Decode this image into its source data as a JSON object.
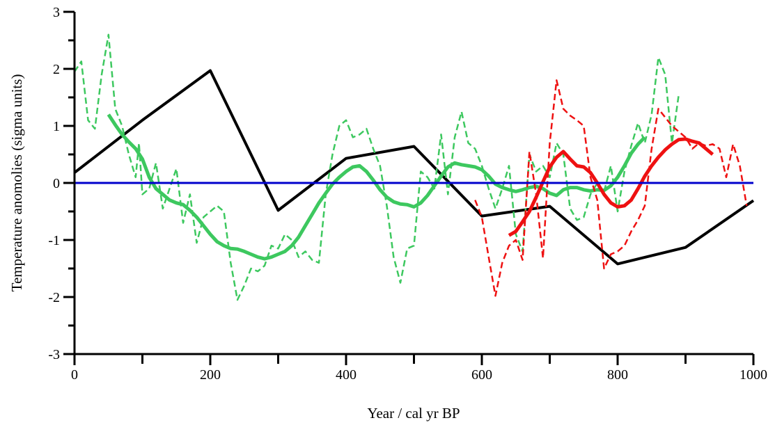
{
  "chart_data": {
    "type": "line",
    "title": "",
    "xlabel": "Year / cal yr BP",
    "ylabel": "Temperature anomolies (sigma units)",
    "xlim": [
      0,
      1000
    ],
    "ylim": [
      -3,
      3
    ],
    "x_ticks": [
      0,
      200,
      400,
      600,
      800,
      1000
    ],
    "x_minor_ticks": [
      100,
      300,
      500,
      700,
      900
    ],
    "y_ticks": [
      -3,
      -2,
      -1,
      0,
      1,
      2,
      3
    ],
    "y_minor_ticks": [
      -2.5,
      -1.5,
      -0.5,
      0.5,
      1.5,
      2.5
    ],
    "grid": false,
    "legend": "none",
    "colors": {
      "black": "#000000",
      "green": "#3dc85f",
      "red": "#ee1111",
      "zero_line": "#0000cc"
    },
    "series": [
      {
        "color": "black",
        "dash": false,
        "width": 4,
        "points": [
          [
            0,
            0.18
          ],
          [
            100,
            1.1
          ],
          [
            200,
            1.97
          ],
          [
            300,
            -0.48
          ],
          [
            400,
            0.43
          ],
          [
            500,
            0.64
          ],
          [
            600,
            -0.58
          ],
          [
            700,
            -0.41
          ],
          [
            800,
            -1.42
          ],
          [
            900,
            -1.13
          ],
          [
            1000,
            -0.31
          ]
        ]
      },
      {
        "color": "green",
        "dash": true,
        "width": 2.5,
        "points": [
          [
            0,
            1.95
          ],
          [
            10,
            2.13
          ],
          [
            20,
            1.1
          ],
          [
            30,
            0.95
          ],
          [
            40,
            1.9
          ],
          [
            50,
            2.6
          ],
          [
            60,
            1.3
          ],
          [
            70,
            1.0
          ],
          [
            80,
            0.5
          ],
          [
            90,
            0.1
          ],
          [
            95,
            0.7
          ],
          [
            100,
            -0.2
          ],
          [
            110,
            -0.1
          ],
          [
            120,
            0.35
          ],
          [
            130,
            -0.45
          ],
          [
            140,
            -0.1
          ],
          [
            150,
            0.25
          ],
          [
            160,
            -0.7
          ],
          [
            170,
            -0.2
          ],
          [
            180,
            -1.05
          ],
          [
            190,
            -0.6
          ],
          [
            200,
            -0.5
          ],
          [
            210,
            -0.4
          ],
          [
            220,
            -0.5
          ],
          [
            230,
            -1.4
          ],
          [
            240,
            -2.05
          ],
          [
            250,
            -1.8
          ],
          [
            260,
            -1.5
          ],
          [
            270,
            -1.55
          ],
          [
            280,
            -1.45
          ],
          [
            290,
            -1.1
          ],
          [
            300,
            -1.15
          ],
          [
            310,
            -0.9
          ],
          [
            320,
            -1.0
          ],
          [
            330,
            -1.3
          ],
          [
            340,
            -1.2
          ],
          [
            350,
            -1.35
          ],
          [
            360,
            -1.4
          ],
          [
            370,
            -0.2
          ],
          [
            380,
            0.5
          ],
          [
            390,
            1.0
          ],
          [
            400,
            1.1
          ],
          [
            410,
            0.8
          ],
          [
            420,
            0.85
          ],
          [
            430,
            0.95
          ],
          [
            440,
            0.6
          ],
          [
            450,
            0.3
          ],
          [
            460,
            -0.4
          ],
          [
            470,
            -1.3
          ],
          [
            480,
            -1.75
          ],
          [
            490,
            -1.15
          ],
          [
            500,
            -1.1
          ],
          [
            510,
            0.2
          ],
          [
            520,
            0.1
          ],
          [
            530,
            -0.1
          ],
          [
            540,
            0.85
          ],
          [
            550,
            -0.2
          ],
          [
            560,
            0.8
          ],
          [
            570,
            1.25
          ],
          [
            580,
            0.7
          ],
          [
            590,
            0.6
          ],
          [
            600,
            0.3
          ],
          [
            610,
            -0.1
          ],
          [
            620,
            -0.45
          ],
          [
            630,
            -0.1
          ],
          [
            640,
            0.3
          ],
          [
            650,
            -0.9
          ],
          [
            660,
            -1.2
          ],
          [
            670,
            0.5
          ],
          [
            680,
            0.2
          ],
          [
            690,
            0.3
          ],
          [
            700,
            0.1
          ],
          [
            710,
            0.7
          ],
          [
            720,
            0.5
          ],
          [
            730,
            -0.45
          ],
          [
            740,
            -0.65
          ],
          [
            750,
            -0.6
          ],
          [
            760,
            -0.2
          ],
          [
            770,
            0.0
          ],
          [
            780,
            -0.15
          ],
          [
            790,
            0.3
          ],
          [
            800,
            -0.5
          ],
          [
            810,
            0.2
          ],
          [
            820,
            0.65
          ],
          [
            830,
            1.05
          ],
          [
            840,
            0.7
          ],
          [
            850,
            1.2
          ],
          [
            860,
            2.2
          ],
          [
            870,
            1.9
          ],
          [
            880,
            0.7
          ],
          [
            890,
            1.55
          ]
        ]
      },
      {
        "color": "green",
        "dash": false,
        "width": 5,
        "points": [
          [
            50,
            1.2
          ],
          [
            60,
            1.02
          ],
          [
            70,
            0.85
          ],
          [
            80,
            0.72
          ],
          [
            90,
            0.6
          ],
          [
            100,
            0.42
          ],
          [
            110,
            0.1
          ],
          [
            120,
            -0.1
          ],
          [
            130,
            -0.2
          ],
          [
            140,
            -0.3
          ],
          [
            150,
            -0.35
          ],
          [
            160,
            -0.38
          ],
          [
            170,
            -0.48
          ],
          [
            180,
            -0.6
          ],
          [
            190,
            -0.75
          ],
          [
            200,
            -0.9
          ],
          [
            210,
            -1.03
          ],
          [
            220,
            -1.1
          ],
          [
            230,
            -1.15
          ],
          [
            240,
            -1.16
          ],
          [
            250,
            -1.2
          ],
          [
            260,
            -1.25
          ],
          [
            270,
            -1.3
          ],
          [
            280,
            -1.33
          ],
          [
            290,
            -1.3
          ],
          [
            300,
            -1.25
          ],
          [
            310,
            -1.2
          ],
          [
            320,
            -1.1
          ],
          [
            330,
            -0.95
          ],
          [
            340,
            -0.75
          ],
          [
            350,
            -0.55
          ],
          [
            360,
            -0.35
          ],
          [
            370,
            -0.18
          ],
          [
            380,
            -0.02
          ],
          [
            390,
            0.1
          ],
          [
            400,
            0.2
          ],
          [
            410,
            0.28
          ],
          [
            420,
            0.3
          ],
          [
            430,
            0.2
          ],
          [
            440,
            0.05
          ],
          [
            450,
            -0.12
          ],
          [
            460,
            -0.25
          ],
          [
            470,
            -0.33
          ],
          [
            480,
            -0.37
          ],
          [
            490,
            -0.38
          ],
          [
            500,
            -0.42
          ],
          [
            510,
            -0.35
          ],
          [
            520,
            -0.22
          ],
          [
            530,
            -0.05
          ],
          [
            540,
            0.12
          ],
          [
            550,
            0.28
          ],
          [
            560,
            0.35
          ],
          [
            570,
            0.32
          ],
          [
            580,
            0.3
          ],
          [
            590,
            0.28
          ],
          [
            600,
            0.23
          ],
          [
            610,
            0.12
          ],
          [
            620,
            -0.02
          ],
          [
            630,
            -0.08
          ],
          [
            640,
            -0.12
          ],
          [
            650,
            -0.15
          ],
          [
            660,
            -0.12
          ],
          [
            670,
            -0.08
          ],
          [
            680,
            -0.06
          ],
          [
            690,
            -0.1
          ],
          [
            700,
            -0.18
          ],
          [
            710,
            -0.22
          ],
          [
            720,
            -0.12
          ],
          [
            730,
            -0.08
          ],
          [
            740,
            -0.08
          ],
          [
            750,
            -0.12
          ],
          [
            760,
            -0.14
          ],
          [
            770,
            -0.12
          ],
          [
            780,
            -0.13
          ],
          [
            790,
            -0.05
          ],
          [
            800,
            0.1
          ],
          [
            810,
            0.3
          ],
          [
            820,
            0.52
          ],
          [
            830,
            0.68
          ],
          [
            840,
            0.8
          ]
        ]
      },
      {
        "color": "red",
        "dash": true,
        "width": 2.5,
        "points": [
          [
            590,
            -0.3
          ],
          [
            600,
            -0.6
          ],
          [
            610,
            -1.3
          ],
          [
            620,
            -1.98
          ],
          [
            630,
            -1.4
          ],
          [
            640,
            -1.1
          ],
          [
            650,
            -1.0
          ],
          [
            660,
            -1.35
          ],
          [
            670,
            0.55
          ],
          [
            680,
            -0.2
          ],
          [
            690,
            -1.32
          ],
          [
            700,
            0.7
          ],
          [
            710,
            1.8
          ],
          [
            720,
            1.3
          ],
          [
            730,
            1.18
          ],
          [
            740,
            1.1
          ],
          [
            750,
            1.0
          ],
          [
            760,
            0.1
          ],
          [
            770,
            -0.3
          ],
          [
            780,
            -1.5
          ],
          [
            790,
            -1.25
          ],
          [
            800,
            -1.2
          ],
          [
            810,
            -1.1
          ],
          [
            820,
            -0.85
          ],
          [
            830,
            -0.65
          ],
          [
            840,
            -0.4
          ],
          [
            850,
            0.6
          ],
          [
            860,
            1.3
          ],
          [
            870,
            1.15
          ],
          [
            880,
            1.0
          ],
          [
            890,
            0.9
          ],
          [
            900,
            0.8
          ],
          [
            910,
            0.6
          ],
          [
            920,
            0.7
          ],
          [
            930,
            0.65
          ],
          [
            940,
            0.68
          ],
          [
            950,
            0.6
          ],
          [
            960,
            0.1
          ],
          [
            970,
            0.68
          ],
          [
            980,
            0.3
          ],
          [
            990,
            -0.4
          ]
        ]
      },
      {
        "color": "red",
        "dash": false,
        "width": 5,
        "points": [
          [
            640,
            -0.92
          ],
          [
            650,
            -0.85
          ],
          [
            660,
            -0.68
          ],
          [
            670,
            -0.5
          ],
          [
            680,
            -0.25
          ],
          [
            690,
            0.02
          ],
          [
            700,
            0.28
          ],
          [
            710,
            0.45
          ],
          [
            720,
            0.55
          ],
          [
            730,
            0.42
          ],
          [
            740,
            0.3
          ],
          [
            750,
            0.28
          ],
          [
            760,
            0.18
          ],
          [
            770,
            0.0
          ],
          [
            780,
            -0.2
          ],
          [
            790,
            -0.35
          ],
          [
            800,
            -0.42
          ],
          [
            810,
            -0.4
          ],
          [
            820,
            -0.3
          ],
          [
            830,
            -0.1
          ],
          [
            840,
            0.12
          ],
          [
            850,
            0.3
          ],
          [
            860,
            0.45
          ],
          [
            870,
            0.58
          ],
          [
            880,
            0.68
          ],
          [
            890,
            0.76
          ],
          [
            900,
            0.77
          ],
          [
            910,
            0.73
          ],
          [
            920,
            0.7
          ],
          [
            930,
            0.6
          ],
          [
            940,
            0.5
          ]
        ]
      },
      {
        "color": "zero_line",
        "dash": false,
        "width": 3,
        "points": [
          [
            0,
            0
          ],
          [
            1000,
            0
          ]
        ]
      }
    ]
  }
}
